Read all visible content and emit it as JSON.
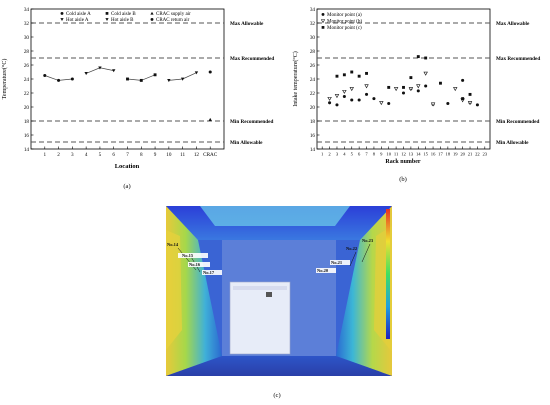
{
  "chart_data": [
    {
      "type": "scatter",
      "panel_label": "(a)",
      "xlabel": "Location",
      "ylabel": "Temperature(°C)",
      "ylim": [
        14,
        34
      ],
      "y_ticks": [
        14,
        16,
        18,
        20,
        22,
        24,
        26,
        28,
        30,
        32,
        34
      ],
      "categories": [
        "1",
        "2",
        "3",
        "4",
        "5",
        "6",
        "7",
        "8",
        "9",
        "10",
        "11",
        "12",
        "CRAC"
      ],
      "reference_lines": [
        {
          "label": "Max Allowable",
          "y": 32,
          "style": "dashed"
        },
        {
          "label": "Max Recommended",
          "y": 27,
          "style": "dashed"
        },
        {
          "label": "Min Recommended",
          "y": 18,
          "style": "dashed"
        },
        {
          "label": "Min Allowable",
          "y": 15,
          "style": "dashed"
        }
      ],
      "series": [
        {
          "name": "Cold aisle A",
          "marker": "circle",
          "x": [
            1,
            2,
            3
          ],
          "y": [
            24.5,
            23.8,
            24.0
          ],
          "line": true
        },
        {
          "name": "Hot aisle A",
          "marker": "triangle-down",
          "x": [
            4,
            5,
            6
          ],
          "y": [
            24.8,
            25.6,
            25.2
          ],
          "line": true
        },
        {
          "name": "Cold aisle B",
          "marker": "square",
          "x": [
            7,
            8,
            9
          ],
          "y": [
            24.0,
            23.8,
            24.6
          ],
          "line": true
        },
        {
          "name": "Hot aisle B",
          "marker": "triangle-down",
          "x": [
            10,
            11,
            12
          ],
          "y": [
            23.8,
            24.0,
            24.9
          ],
          "line": true
        },
        {
          "name": "CRAC supply air",
          "marker": "triangle-up",
          "x": [
            13
          ],
          "y": [
            18.2
          ],
          "line": false
        },
        {
          "name": "CRAC return air",
          "marker": "circle",
          "x": [
            13
          ],
          "y": [
            25.0
          ],
          "line": false
        }
      ]
    },
    {
      "type": "scatter",
      "panel_label": "(b)",
      "xlabel": "Rack number",
      "ylabel": "Intake temperature(°C)",
      "ylim": [
        14,
        34
      ],
      "y_ticks": [
        14,
        16,
        18,
        20,
        22,
        24,
        26,
        28,
        30,
        32,
        34
      ],
      "xlim": [
        1,
        23
      ],
      "x_ticks": [
        1,
        2,
        3,
        4,
        5,
        6,
        7,
        8,
        9,
        10,
        11,
        12,
        13,
        14,
        15,
        16,
        17,
        18,
        19,
        20,
        21,
        22,
        23
      ],
      "reference_lines": [
        {
          "label": "Max Allowable",
          "y": 32,
          "style": "dashed"
        },
        {
          "label": "Max Recommended",
          "y": 27,
          "style": "dashed"
        },
        {
          "label": "Min Recommended",
          "y": 18,
          "style": "dashed"
        },
        {
          "label": "Min Allowable",
          "y": 15,
          "style": "dashed"
        }
      ],
      "series": [
        {
          "name": "Monitor point (a)",
          "marker": "circle",
          "x": [
            2,
            3,
            4,
            5,
            6,
            7,
            8,
            10,
            12,
            13,
            14,
            15,
            16,
            18,
            20,
            21,
            22
          ],
          "y": [
            20.6,
            20.3,
            21.5,
            21.0,
            21.0,
            21.8,
            21.2,
            20.5,
            22.0,
            22.6,
            22.3,
            23.0,
            20.4,
            20.5,
            23.8,
            20.6,
            20.3
          ]
        },
        {
          "name": "Monitor point (b)",
          "marker": "triangle-down",
          "x": [
            2,
            3,
            4,
            5,
            7,
            9,
            11,
            13,
            14,
            15,
            16,
            19,
            20,
            21
          ],
          "y": [
            21.2,
            21.6,
            22.2,
            22.6,
            23.0,
            20.6,
            22.6,
            22.6,
            23.0,
            24.8,
            20.4,
            22.6,
            21.0,
            20.6
          ]
        },
        {
          "name": "Monitor point (c)",
          "marker": "square",
          "x": [
            3,
            4,
            5,
            6,
            7,
            10,
            12,
            13,
            14,
            15,
            17,
            20,
            21
          ],
          "y": [
            24.4,
            24.6,
            25.0,
            24.4,
            24.8,
            22.8,
            22.8,
            24.2,
            27.2,
            27.0,
            23.4,
            21.2,
            21.8
          ]
        }
      ]
    }
  ],
  "photo": {
    "panel_label": "(c)",
    "callouts": [
      "No.14",
      "No.15",
      "No.16",
      "No.17",
      "No.20",
      "No.21",
      "No.22",
      "No.23"
    ]
  },
  "colors": {
    "axis": "#000000",
    "reference_line": "#555555",
    "data_line": "#444444"
  }
}
